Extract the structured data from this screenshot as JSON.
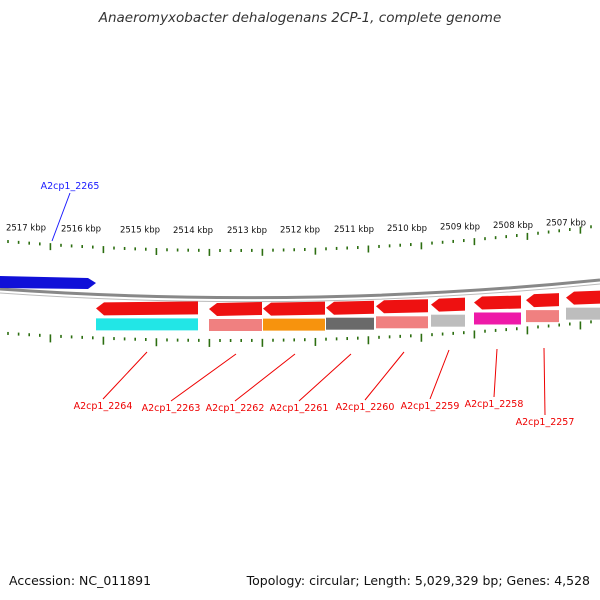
{
  "title": "Anaeromyxobacter dehalogenans 2CP-1, complete genome",
  "footer": {
    "accession": "Accession: NC_011891",
    "summary": "Topology: circular; Length: 5,029,329 bp; Genes: 4,528"
  },
  "colors": {
    "forward_gene": "#1010d8",
    "reverse_gene": "#ee1111",
    "tick": "#2c6e10",
    "backbone": "#888888",
    "label_forward": "#1a1aff",
    "label_reverse": "#ee0000"
  },
  "scale_labels": [
    "2517 kbp",
    "2516 kbp",
    "2515 kbp",
    "2514 kbp",
    "2513 kbp",
    "2512 kbp",
    "2511 kbp",
    "2510 kbp",
    "2509 kbp",
    "2508 kbp",
    "2507 kbp"
  ],
  "genes_forward": [
    {
      "name": "A2cp1_2265",
      "color": "#1010d8"
    }
  ],
  "genes_reverse": [
    {
      "name": "A2cp1_2264",
      "cog_color": "#22e6e6"
    },
    {
      "name": "A2cp1_2263",
      "cog_color": "#f08080"
    },
    {
      "name": "A2cp1_2262",
      "cog_color": "#f7930d"
    },
    {
      "name": "A2cp1_2261",
      "cog_color": "#6a6a6a"
    },
    {
      "name": "A2cp1_2260",
      "cog_color": "#f08080"
    },
    {
      "name": "A2cp1_2259",
      "cog_color": "#bdbdbd"
    },
    {
      "name": "A2cp1_2258",
      "cog_color": "#ee1aa8"
    },
    {
      "name": "A2cp1_2257",
      "cog_color": "#f08080"
    },
    {
      "name": "",
      "cog_color": "#bdbdbd"
    }
  ]
}
